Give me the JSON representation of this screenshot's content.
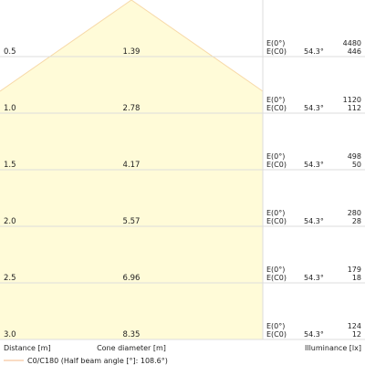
{
  "chart_data": {
    "type": "cone-diagram",
    "rows": [
      {
        "distance": "0.5",
        "diameter": "1.39",
        "e_labels": [
          "E(0°)",
          "E(C0)"
        ],
        "angle": "54.3°",
        "illuminance": [
          "4480",
          "446"
        ]
      },
      {
        "distance": "1.0",
        "diameter": "2.78",
        "e_labels": [
          "E(0°)",
          "E(C0)"
        ],
        "angle": "54.3°",
        "illuminance": [
          "1120",
          "112"
        ]
      },
      {
        "distance": "1.5",
        "diameter": "4.17",
        "e_labels": [
          "E(0°)",
          "E(C0)"
        ],
        "angle": "54.3°",
        "illuminance": [
          "498",
          "50"
        ]
      },
      {
        "distance": "2.0",
        "diameter": "5.57",
        "e_labels": [
          "E(0°)",
          "E(C0)"
        ],
        "angle": "54.3°",
        "illuminance": [
          "280",
          "28"
        ]
      },
      {
        "distance": "2.5",
        "diameter": "6.96",
        "e_labels": [
          "E(0°)",
          "E(C0)"
        ],
        "angle": "54.3°",
        "illuminance": [
          "179",
          "18"
        ]
      },
      {
        "distance": "3.0",
        "diameter": "8.35",
        "e_labels": [
          "E(0°)",
          "E(C0)"
        ],
        "angle": "54.3°",
        "illuminance": [
          "124",
          "12"
        ]
      }
    ],
    "xlabel_distance": "Distance [m]",
    "xlabel_diameter": "Cone diameter [m]",
    "xlabel_illuminance": "Illuminance [lx]",
    "legend": "C0/C180 (Half beam angle [°]: 108.6°)",
    "half_beam_angle_deg": 108.6,
    "colors": {
      "cone_fill": "#fffbd8",
      "cone_stroke": "#f7d9a8",
      "grid": "#dcdcdc",
      "text": "#222222",
      "legend_line": "#f5b98a"
    }
  }
}
